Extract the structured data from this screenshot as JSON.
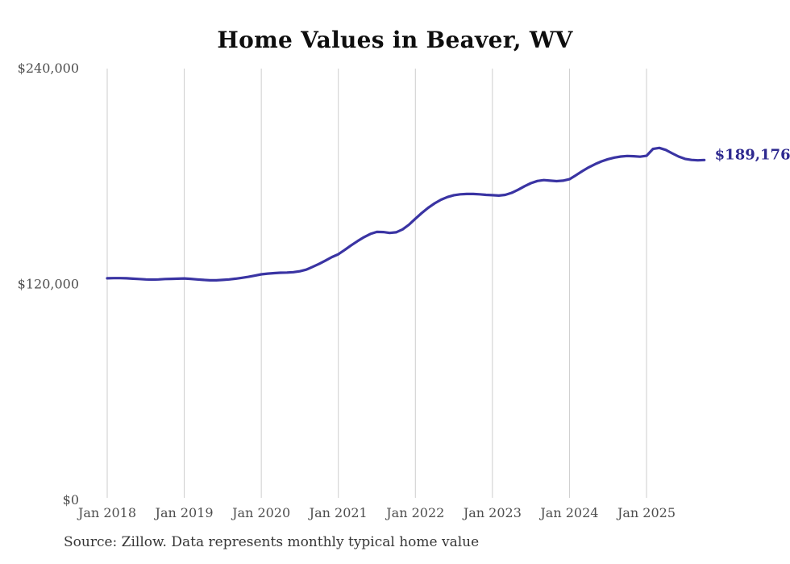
{
  "page": {
    "title": "Home Values in Beaver, WV",
    "source_note": "Source: Zillow. Data represents monthly typical home value"
  },
  "colors": {
    "background": "#ffffff",
    "line": "#3a34a3",
    "grid": "#cdcdcd",
    "axis_text": "#4e4e4e",
    "title_text": "#0e0e0e",
    "source_text": "#363636",
    "end_label_text": "#2e298f"
  },
  "chart_data": {
    "type": "line",
    "title": "Home Values in Beaver, WV",
    "xlabel": "",
    "ylabel": "",
    "x_unit": "month",
    "x_start": "Jan 2018",
    "x_end": "Oct 2025",
    "x_tick_labels": [
      "Jan 2018",
      "Jan 2019",
      "Jan 2020",
      "Jan 2021",
      "Jan 2022",
      "Jan 2023",
      "Jan 2024",
      "Jan 2025"
    ],
    "y_ticks": [
      0,
      120000,
      240000
    ],
    "y_tick_labels": [
      "$0",
      "$120,000",
      "$240,000"
    ],
    "ylim": [
      0,
      240000
    ],
    "grid": "vertical",
    "legend": "none",
    "end_label": "$189,176",
    "end_value": 189176,
    "series": [
      {
        "name": "Typical home value",
        "color": "#3a34a3",
        "values": [
          123400,
          123500,
          123500,
          123400,
          123200,
          123000,
          122800,
          122700,
          122800,
          123000,
          123100,
          123200,
          123300,
          123100,
          122800,
          122500,
          122300,
          122300,
          122500,
          122800,
          123200,
          123700,
          124200,
          124900,
          125600,
          126000,
          126300,
          126500,
          126600,
          126800,
          127300,
          128200,
          129800,
          131400,
          133300,
          135200,
          136800,
          139200,
          141700,
          144100,
          146300,
          148100,
          149200,
          149100,
          148600,
          149000,
          150600,
          153200,
          156500,
          159700,
          162600,
          165100,
          167100,
          168600,
          169600,
          170100,
          170300,
          170300,
          170100,
          169800,
          169600,
          169400,
          169800,
          170900,
          172600,
          174600,
          176300,
          177500,
          178000,
          177700,
          177400,
          177700,
          178500,
          180700,
          183000,
          185100,
          186900,
          188400,
          189600,
          190500,
          191100,
          191400,
          191300,
          191000,
          191500,
          195300,
          195900,
          194800,
          192900,
          191100,
          189800,
          189200,
          189000,
          189176
        ]
      }
    ]
  }
}
